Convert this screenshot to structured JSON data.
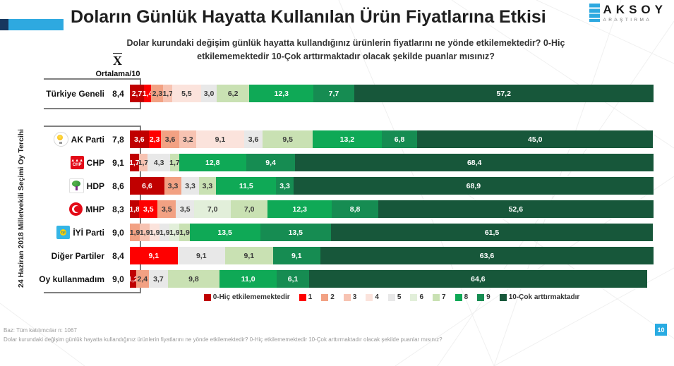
{
  "header": {
    "title": "Doların Günlük Hayatta Kullanılan Ürün Fiyatlarına Etkisi",
    "logo": {
      "name": "AKSOY",
      "sub": "ARAŞTIRMA"
    }
  },
  "subtitle": "Dolar kurundaki değişim günlük hayatta kullandığınız ürünlerin fiyatlarını ne yönde etkilemektedir?   0-Hiç etkilememektedir 10-Çok arttırmaktadır olacak şekilde puanlar mısınız?",
  "axis": {
    "mean_symbol": "X",
    "mean_label": "Ortalama/10"
  },
  "group_label": "24 Haziran 2018 Milletvekili Seçimi Oy Tercihi",
  "scale_colors": {
    "0": "#c00000",
    "1": "#fe0000",
    "2": "#f2a183",
    "3": "#f7c3b2",
    "4": "#fbe3dc",
    "5": "#e8e8e8",
    "6": "#e2efda",
    "7": "#c9e1b3",
    "8": "#0fa956",
    "9": "#168c52",
    "10": "#17573a"
  },
  "legend": [
    {
      "key": "0",
      "label": "0-Hiç etkilememektedir"
    },
    {
      "key": "1",
      "label": "1"
    },
    {
      "key": "2",
      "label": "2"
    },
    {
      "key": "3",
      "label": "3"
    },
    {
      "key": "4",
      "label": "4"
    },
    {
      "key": "5",
      "label": "5"
    },
    {
      "key": "6",
      "label": "6"
    },
    {
      "key": "7",
      "label": "7"
    },
    {
      "key": "8",
      "label": "8"
    },
    {
      "key": "9",
      "label": "9"
    },
    {
      "key": "10",
      "label": "10-Çok arttırmaktadır"
    }
  ],
  "chart_data": {
    "type": "bar",
    "variant": "horizontal-stacked-100pct",
    "scale": "0 (Hiç etkilememektedir) – 10 (Çok arttırmaktadır), values are percent of respondents",
    "rows": [
      {
        "label": "Türkiye Geneli",
        "mean": "8,4",
        "icon": null,
        "segments": [
          [
            "0",
            "2,7"
          ],
          [
            "1",
            "1,4"
          ],
          [
            "2",
            "2,3"
          ],
          [
            "3",
            "1,7"
          ],
          [
            "4",
            "5,5"
          ],
          [
            "5",
            "3,0"
          ],
          [
            "7",
            "6,2"
          ],
          [
            "8",
            "12,3"
          ],
          [
            "9",
            "7,7"
          ],
          [
            "10",
            "57,2"
          ]
        ]
      },
      {
        "label": "AK Parti",
        "mean": "7,8",
        "icon": "akparti",
        "segments": [
          [
            "0",
            "3,6"
          ],
          [
            "1",
            "2,3"
          ],
          [
            "2",
            "3,6"
          ],
          [
            "3",
            "3,2"
          ],
          [
            "4",
            "9,1"
          ],
          [
            "5",
            "3,6"
          ],
          [
            "7",
            "9,5"
          ],
          [
            "8",
            "13,2"
          ],
          [
            "9",
            "6,8"
          ],
          [
            "10",
            "45,0"
          ]
        ]
      },
      {
        "label": "CHP",
        "mean": "9,1",
        "icon": "chp",
        "segments": [
          [
            "0",
            "1,7"
          ],
          [
            "3",
            "1,7"
          ],
          [
            "5",
            "4,3"
          ],
          [
            "7",
            "1,7"
          ],
          [
            "8",
            "12,8"
          ],
          [
            "9",
            "9,4"
          ],
          [
            "10",
            "68,4"
          ]
        ]
      },
      {
        "label": "HDP",
        "mean": "8,6",
        "icon": "hdp",
        "segments": [
          [
            "0",
            "6,6"
          ],
          [
            "2",
            "3,3"
          ],
          [
            "5",
            "3,3"
          ],
          [
            "7",
            "3,3"
          ],
          [
            "8",
            "11,5"
          ],
          [
            "9",
            "3,3"
          ],
          [
            "10",
            "68,9"
          ]
        ]
      },
      {
        "label": "MHP",
        "mean": "8,3",
        "icon": "mhp",
        "segments": [
          [
            "0",
            "1,8"
          ],
          [
            "1",
            "3,5"
          ],
          [
            "2",
            "3,5"
          ],
          [
            "5",
            "3,5"
          ],
          [
            "6",
            "7,0"
          ],
          [
            "7",
            "7,0"
          ],
          [
            "8",
            "12,3"
          ],
          [
            "9",
            "8,8"
          ],
          [
            "10",
            "52,6"
          ]
        ]
      },
      {
        "label": "İYİ Parti",
        "mean": "9,0",
        "icon": "iyi",
        "segments": [
          [
            "2",
            "1,9"
          ],
          [
            "3",
            "1,9"
          ],
          [
            "4",
            "1,9"
          ],
          [
            "5",
            "1,9"
          ],
          [
            "6",
            "1,9"
          ],
          [
            "7",
            "1,9"
          ],
          [
            "8",
            "13,5"
          ],
          [
            "9",
            "13,5"
          ],
          [
            "10",
            "61,5"
          ]
        ]
      },
      {
        "label": "Diğer Partiler",
        "mean": "8,4",
        "icon": null,
        "segments": [
          [
            "1",
            "9,1"
          ],
          [
            "5",
            "9,1"
          ],
          [
            "7",
            "9,1"
          ],
          [
            "9",
            "9,1"
          ],
          [
            "10",
            "63,6"
          ]
        ]
      },
      {
        "label": "Oy kullanmadım",
        "mean": "9,0",
        "icon": null,
        "segments": [
          [
            "0",
            "1,2"
          ],
          [
            "2",
            "2,4"
          ],
          [
            "5",
            "3,7"
          ],
          [
            "7",
            "9,8"
          ],
          [
            "8",
            "11,0"
          ],
          [
            "9",
            "6,1"
          ],
          [
            "10",
            "64,6"
          ]
        ]
      }
    ]
  },
  "footer": {
    "base": "Baz: Tüm katılımcılar n: 1067",
    "question": "Dolar kurundaki değişim günlük hayatta kullandığınız ürünlerin fiyatlarını ne yönde etkilemektedir?   0-Hiç etkilememektedir 10-Çok arttırmaktadır olacak şekilde puanlar mısınız?",
    "page": "10"
  }
}
